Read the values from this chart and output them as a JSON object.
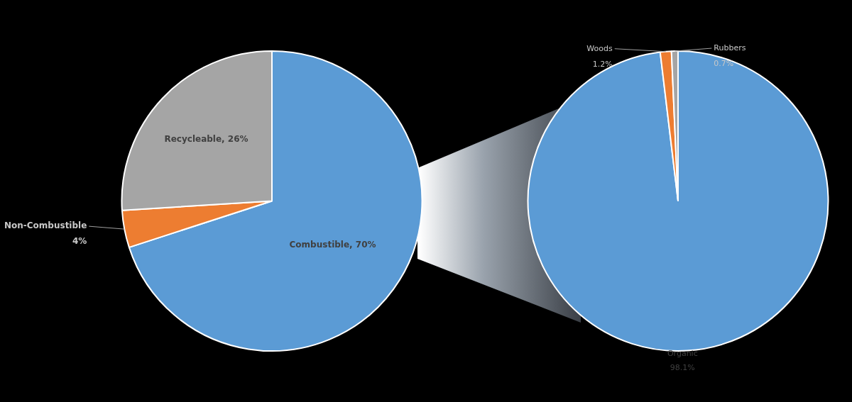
{
  "chart_data": [
    {
      "type": "pie",
      "categories": [
        "Combustible",
        "Non-Combustible",
        "Recycleable"
      ],
      "values": [
        70,
        4,
        26
      ],
      "colors": [
        "#5b9bd5",
        "#ed7d31",
        "#a5a5a5"
      ],
      "value_labels": [
        ", 70%",
        "4%",
        ", 26%"
      ]
    },
    {
      "type": "pie",
      "categories": [
        "Organic",
        "Woods",
        "Rubbers"
      ],
      "values": [
        98.1,
        1.2,
        0.7
      ],
      "colors": [
        "#5b9bd5",
        "#ed7d31",
        "#a5a5a5"
      ],
      "value_labels": [
        "98.1%",
        "1.2%",
        "0.7%"
      ]
    }
  ]
}
